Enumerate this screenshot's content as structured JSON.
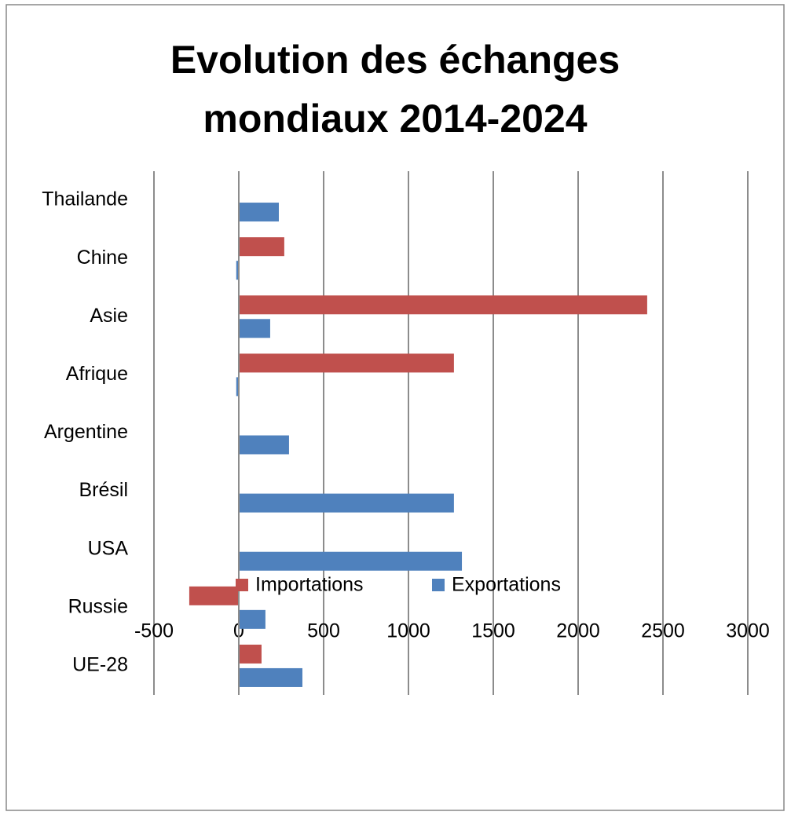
{
  "chart_data": {
    "type": "bar",
    "orientation": "horizontal",
    "title": [
      "Evolution des échanges",
      "mondiaux 2014-2024"
    ],
    "categories": [
      "UE-28",
      "Russie",
      "USA",
      "Brésil",
      "Argentine",
      "Afrique",
      "Asie",
      "Chine",
      "Thailande"
    ],
    "series": [
      {
        "name": "Importations",
        "color": "#c0504d",
        "values": [
          134,
          -292,
          0,
          0,
          0,
          1268,
          2407,
          268,
          0
        ]
      },
      {
        "name": "Exportations",
        "color": "#4f81bd",
        "values": [
          375,
          157,
          1315,
          1268,
          296,
          -15,
          185,
          -15,
          236
        ]
      }
    ],
    "xlim": [
      -500,
      3000
    ],
    "xticks": [
      -500,
      0,
      500,
      1000,
      1500,
      2000,
      2500,
      3000
    ],
    "grid": true,
    "legend": "bottom"
  }
}
